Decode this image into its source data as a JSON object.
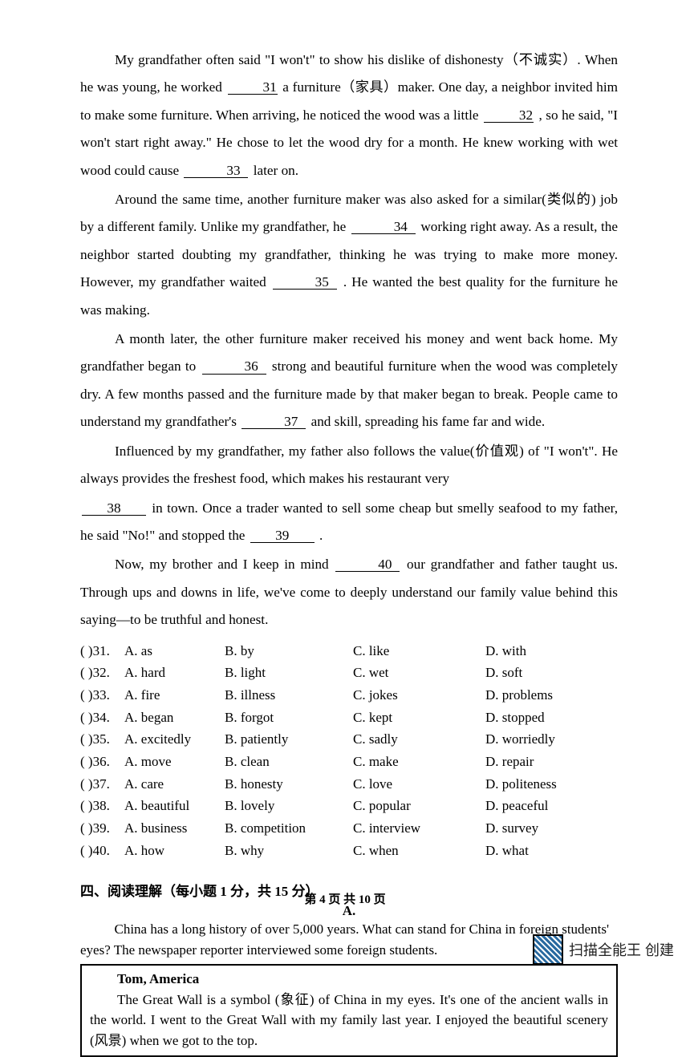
{
  "passage": {
    "p1": {
      "seg1": "My grandfather often said \"I won't\" to show his dislike of dishonesty（不诚实）. When he was young, he worked ",
      "b1": "31",
      "seg2": " a furniture（家具）maker. One day, a neighbor invited him to make some furniture. When arriving, he noticed the wood was a little ",
      "b2": "32",
      "seg3": ", so he said, \"I won't start right away.\" He chose to let the wood dry for a month. He knew working with wet wood could cause ",
      "b3": "33",
      "seg4": " later on."
    },
    "p2": {
      "seg1": "Around the same time, another furniture maker was also asked for a similar(类似的) job by a different family. Unlike my grandfather, he ",
      "b1": "34",
      "seg2": " working right away. As a result, the neighbor started doubting my grandfather, thinking he was trying to make more money. However, my grandfather waited ",
      "b2": "35",
      "seg3": ". He wanted the best quality for the furniture he was making."
    },
    "p3": {
      "seg1": "A month later, the other furniture maker received his money and went back home. My grandfather began to ",
      "b1": "36",
      "seg2": " strong and beautiful furniture when the wood was completely dry. A few months passed and the furniture made by that maker began to break. People came to understand my grandfather's ",
      "b2": "37",
      "seg3": " and skill, spreading his fame far and wide."
    },
    "p4": {
      "seg1": "Influenced by my grandfather, my father also follows the value(价值观) of \"I won't\". He always provides the freshest food, which makes his restaurant very ",
      "b1": "38",
      "seg2": " in town. Once a trader wanted to sell some cheap but smelly seafood to my father, he said \"No!\" and stopped the ",
      "b2": "39",
      "seg3": "."
    },
    "p5": {
      "seg1": "Now, my brother and I keep in mind ",
      "b1": "40",
      "seg2": " our grandfather and father taught us. Through ups and downs in life, we've come to deeply understand our family value behind this saying—to be truthful and honest."
    }
  },
  "options": [
    {
      "n": "(    )31.",
      "a": "A. as",
      "b": "B. by",
      "c": "C. like",
      "d": "D. with"
    },
    {
      "n": "(    )32.",
      "a": "A. hard",
      "b": "B. light",
      "c": "C. wet",
      "d": "D. soft"
    },
    {
      "n": "(    )33.",
      "a": "A. fire",
      "b": "B. illness",
      "c": "C. jokes",
      "d": "D. problems"
    },
    {
      "n": "(    )34.",
      "a": "A. began",
      "b": "B. forgot",
      "c": "C. kept",
      "d": "D. stopped"
    },
    {
      "n": "(    )35.",
      "a": "A. excitedly",
      "b": "B. patiently",
      "c": "C. sadly",
      "d": "D. worriedly"
    },
    {
      "n": "(    )36.",
      "a": "A. move",
      "b": "B. clean",
      "c": "C. make",
      "d": "D. repair"
    },
    {
      "n": "(    )37.",
      "a": "A. care",
      "b": "B. honesty",
      "c": "C. love",
      "d": "D. politeness"
    },
    {
      "n": "(    )38.",
      "a": "A. beautiful",
      "b": "B. lovely",
      "c": "C. popular",
      "d": "D. peaceful"
    },
    {
      "n": "(    )39.",
      "a": "A. business",
      "b": "B. competition",
      "c": "C. interview",
      "d": "D. survey"
    },
    {
      "n": "(    )40.",
      "a": "A. how",
      "b": "B. why",
      "c": "C. when",
      "d": "D. what"
    }
  ],
  "section4": {
    "title": "四、阅读理解（每小题 1 分，共 15 分）",
    "sublabel": "A.",
    "intro": "China has a long history of over 5,000 years. What can stand for China in foreign students' eyes? The newspaper reporter interviewed some foreign students.",
    "box_name": "Tom, America",
    "box_body": "The Great Wall is a symbol (象征) of China in my eyes. It's one of the ancient walls in the world. I went to the Great Wall with my family last year. I enjoyed the beautiful scenery (风景) when we got to the top."
  },
  "footer": "第 4 页 共 10 页",
  "watermark": "扫描全能王  创建"
}
